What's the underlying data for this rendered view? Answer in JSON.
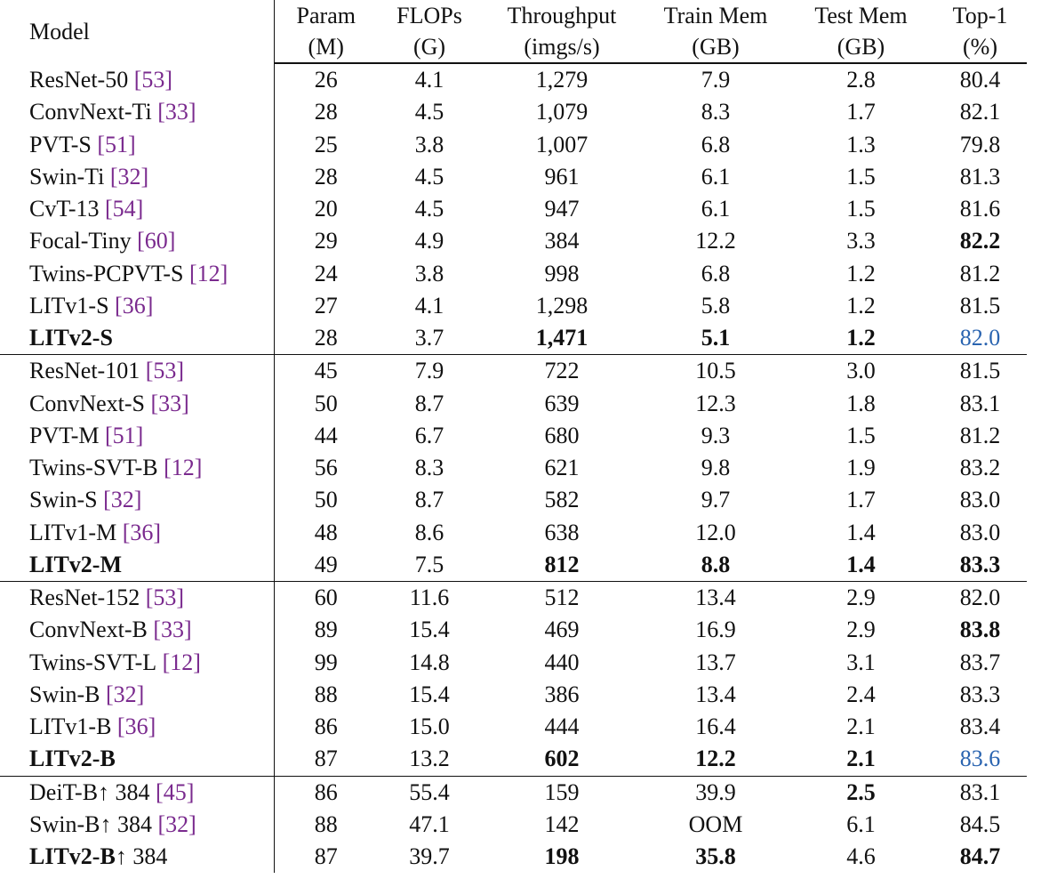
{
  "table": {
    "header": {
      "model": "Model",
      "columns": [
        [
          "Param",
          "(M)"
        ],
        [
          "FLOPs",
          "(G)"
        ],
        [
          "Throughput",
          "(imgs/s)"
        ],
        [
          "Train Mem",
          "(GB)"
        ],
        [
          "Test Mem",
          "(GB)"
        ],
        [
          "Top-1",
          "(%)"
        ]
      ]
    },
    "groups": [
      {
        "rows": [
          {
            "model": "ResNet-50",
            "ref": "[53]",
            "cells": [
              "26",
              "4.1",
              "1,279",
              "7.9",
              "2.8",
              "80.4"
            ]
          },
          {
            "model": "ConvNext-Ti",
            "ref": "[33]",
            "cells": [
              "28",
              "4.5",
              "1,079",
              "8.3",
              "1.7",
              "82.1"
            ]
          },
          {
            "model": "PVT-S",
            "ref": "[51]",
            "cells": [
              "25",
              "3.8",
              "1,007",
              "6.8",
              "1.3",
              "79.8"
            ]
          },
          {
            "model": "Swin-Ti",
            "ref": "[32]",
            "cells": [
              "28",
              "4.5",
              "961",
              "6.1",
              "1.5",
              "81.3"
            ]
          },
          {
            "model": "CvT-13",
            "ref": "[54]",
            "cells": [
              "20",
              "4.5",
              "947",
              "6.1",
              "1.5",
              "81.6"
            ]
          },
          {
            "model": "Focal-Tiny",
            "ref": "[60]",
            "cells": [
              "29",
              "4.9",
              "384",
              "12.2",
              "3.3",
              "82.2"
            ],
            "bold": [
              5
            ]
          },
          {
            "model": "Twins-PCPVT-S",
            "ref": "[12]",
            "cells": [
              "24",
              "3.8",
              "998",
              "6.8",
              "1.2",
              "81.2"
            ]
          },
          {
            "model": "LITv1-S",
            "ref": "[36]",
            "cells": [
              "27",
              "4.1",
              "1,298",
              "5.8",
              "1.2",
              "81.5"
            ]
          },
          {
            "model": "LITv2-S",
            "model_bold": true,
            "cells": [
              "28",
              "3.7",
              "1,471",
              "5.1",
              "1.2",
              "82.0"
            ],
            "bold": [
              2,
              3,
              4
            ],
            "blue": [
              5
            ]
          }
        ]
      },
      {
        "rows": [
          {
            "model": "ResNet-101",
            "ref": "[53]",
            "cells": [
              "45",
              "7.9",
              "722",
              "10.5",
              "3.0",
              "81.5"
            ]
          },
          {
            "model": "ConvNext-S",
            "ref": "[33]",
            "cells": [
              "50",
              "8.7",
              "639",
              "12.3",
              "1.8",
              "83.1"
            ]
          },
          {
            "model": "PVT-M",
            "ref": "[51]",
            "cells": [
              "44",
              "6.7",
              "680",
              "9.3",
              "1.5",
              "81.2"
            ]
          },
          {
            "model": "Twins-SVT-B",
            "ref": "[12]",
            "cells": [
              "56",
              "8.3",
              "621",
              "9.8",
              "1.9",
              "83.2"
            ]
          },
          {
            "model": "Swin-S",
            "ref": "[32]",
            "cells": [
              "50",
              "8.7",
              "582",
              "9.7",
              "1.7",
              "83.0"
            ]
          },
          {
            "model": "LITv1-M",
            "ref": "[36]",
            "cells": [
              "48",
              "8.6",
              "638",
              "12.0",
              "1.4",
              "83.0"
            ]
          },
          {
            "model": "LITv2-M",
            "model_bold": true,
            "cells": [
              "49",
              "7.5",
              "812",
              "8.8",
              "1.4",
              "83.3"
            ],
            "bold": [
              2,
              3,
              4,
              5
            ]
          }
        ]
      },
      {
        "rows": [
          {
            "model": "ResNet-152",
            "ref": "[53]",
            "cells": [
              "60",
              "11.6",
              "512",
              "13.4",
              "2.9",
              "82.0"
            ]
          },
          {
            "model": "ConvNext-B",
            "ref": "[33]",
            "cells": [
              "89",
              "15.4",
              "469",
              "16.9",
              "2.9",
              "83.8"
            ],
            "bold": [
              5
            ]
          },
          {
            "model": "Twins-SVT-L",
            "ref": "[12]",
            "cells": [
              "99",
              "14.8",
              "440",
              "13.7",
              "3.1",
              "83.7"
            ]
          },
          {
            "model": "Swin-B",
            "ref": "[32]",
            "cells": [
              "88",
              "15.4",
              "386",
              "13.4",
              "2.4",
              "83.3"
            ]
          },
          {
            "model": "LITv1-B",
            "ref": "[36]",
            "cells": [
              "86",
              "15.0",
              "444",
              "16.4",
              "2.1",
              "83.4"
            ]
          },
          {
            "model": "LITv2-B",
            "model_bold": true,
            "cells": [
              "87",
              "13.2",
              "602",
              "12.2",
              "2.1",
              "83.6"
            ],
            "bold": [
              2,
              3,
              4
            ],
            "blue": [
              5
            ]
          }
        ]
      },
      {
        "rows": [
          {
            "model": "DeiT-B",
            "suffix": "↑ 384",
            "ref": "[45]",
            "cells": [
              "86",
              "55.4",
              "159",
              "39.9",
              "2.5",
              "83.1"
            ],
            "bold": [
              4
            ]
          },
          {
            "model": "Swin-B",
            "suffix": "↑ 384",
            "ref": "[32]",
            "cells": [
              "88",
              "47.1",
              "142",
              "OOM",
              "6.1",
              "84.5"
            ]
          },
          {
            "model": "LITv2-B",
            "suffix": "↑ 384",
            "model_bold": true,
            "cells": [
              "87",
              "39.7",
              "198",
              "35.8",
              "4.6",
              "84.7"
            ],
            "bold": [
              2,
              3,
              5
            ]
          }
        ]
      }
    ]
  }
}
